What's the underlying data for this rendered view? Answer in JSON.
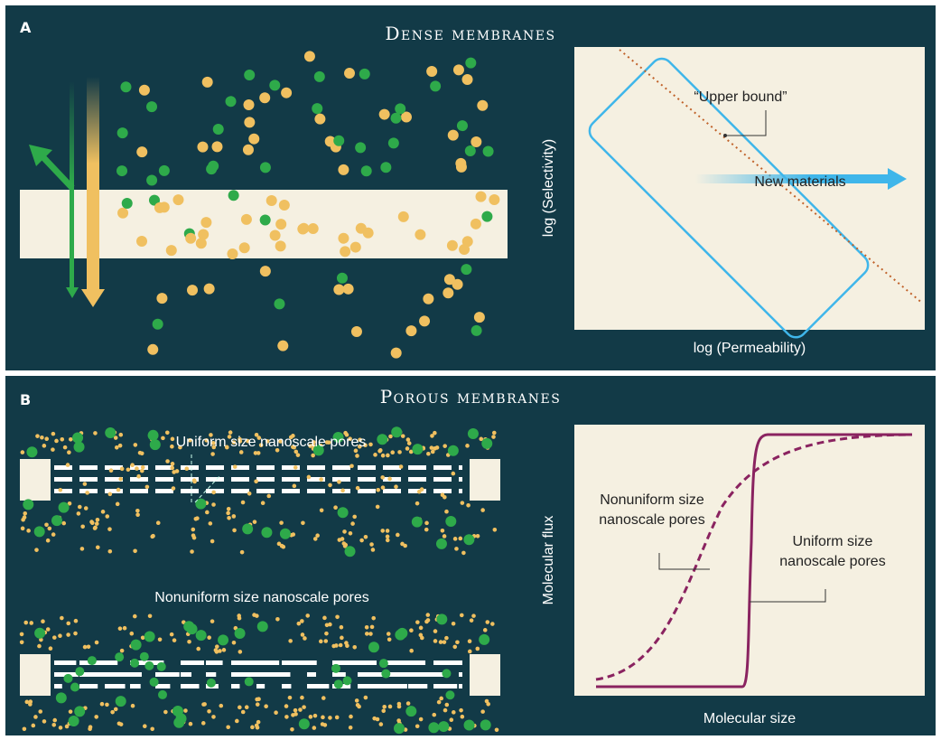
{
  "panels": [
    {
      "label": "A",
      "title": "Dense membranes",
      "plot": {
        "x_label": "log (Permeability)",
        "y_label": "log (Selectivity)",
        "annotations": [
          "“Upper bound”",
          "New materials"
        ]
      }
    },
    {
      "label": "B",
      "title": "Porous membranes",
      "diagram_labels": [
        "Uniform size nanoscale pores",
        "Nonuniform size nanoscale pores"
      ],
      "plot": {
        "x_label": "Molecular size",
        "y_label": "Molecular flux",
        "annotations": [
          [
            "Nonuniform size",
            "nanoscale pores"
          ],
          [
            "Uniform size",
            "nanoscale pores"
          ]
        ]
      }
    }
  ]
}
